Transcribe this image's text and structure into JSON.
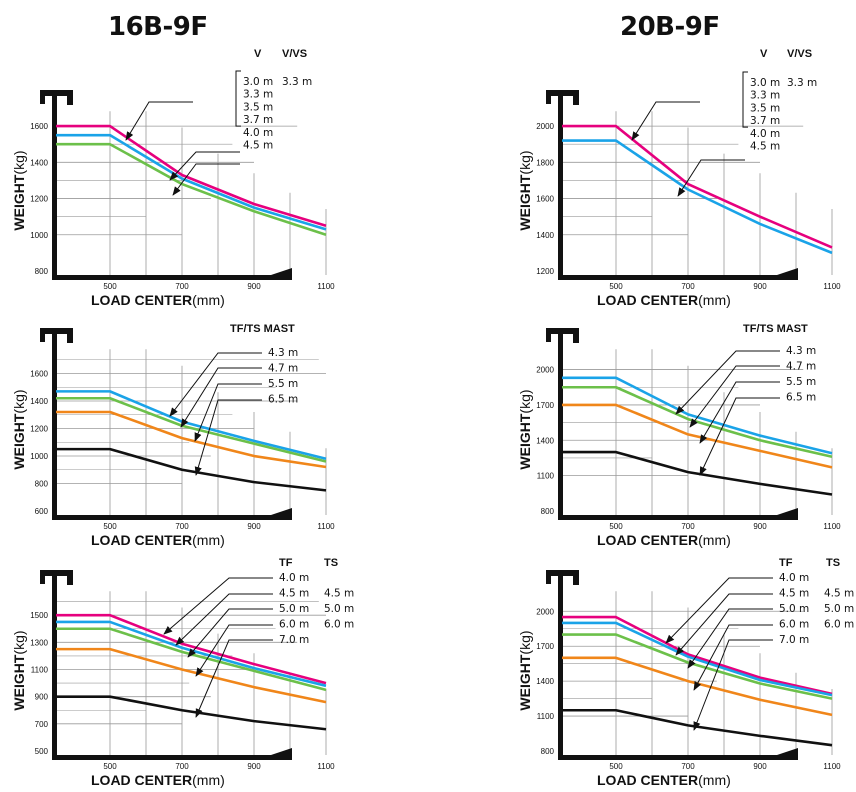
{
  "titles": {
    "left": "16B-9F",
    "right": "20B-9F"
  },
  "axis": {
    "y_bold": "WEIGHT",
    "y_unit": "(kg)",
    "x_bold": "LOAD CENTER",
    "x_unit": "(mm)"
  },
  "colors": {
    "magenta": "#e6007e",
    "cyan": "#1aa3e8",
    "green": "#6cc04a",
    "orange": "#f0861a",
    "black": "#111111",
    "grid": "#9a9a9a"
  },
  "chart_data": [
    {
      "type": "line",
      "model": "16B-9F",
      "mast": "V / V/VS",
      "x": [
        500,
        700,
        900,
        1100
      ],
      "xticks": [
        500,
        700,
        900,
        1100
      ],
      "ylim": [
        800,
        1700
      ],
      "yticks": [
        800,
        1000,
        1200,
        1400,
        1600
      ],
      "headers": [
        "V",
        "V/VS"
      ],
      "labels": [
        {
          "col1": "3.0 m",
          "col2": "3.3 m"
        },
        {
          "col1": "3.3 m"
        },
        {
          "col1": "3.5 m"
        },
        {
          "col1": "3.7 m"
        },
        {
          "col1": "4.0 m"
        },
        {
          "col1": "4.5 m"
        }
      ],
      "series": [
        {
          "color": "#e6007e",
          "values": [
            1600,
            1330,
            1170,
            1050
          ]
        },
        {
          "color": "#1aa3e8",
          "values": [
            1550,
            1310,
            1150,
            1030
          ]
        },
        {
          "color": "#6cc04a",
          "values": [
            1500,
            1280,
            1130,
            1000
          ]
        }
      ]
    },
    {
      "type": "line",
      "model": "20B-9F",
      "mast": "V / V/VS",
      "x": [
        500,
        700,
        900,
        1100
      ],
      "xticks": [
        500,
        700,
        900,
        1100
      ],
      "ylim": [
        1200,
        2100
      ],
      "yticks": [
        1200,
        1400,
        1600,
        1800,
        2000
      ],
      "headers": [
        "V",
        "V/VS"
      ],
      "labels": [
        {
          "col1": "3.0 m",
          "col2": "3.3 m"
        },
        {
          "col1": "3.3 m"
        },
        {
          "col1": "3.5 m"
        },
        {
          "col1": "3.7 m"
        },
        {
          "col1": "4.0 m"
        },
        {
          "col1": "4.5 m"
        }
      ],
      "series": [
        {
          "color": "#e6007e",
          "values": [
            2000,
            1680,
            1500,
            1330
          ]
        },
        {
          "color": "#1aa3e8",
          "values": [
            1920,
            1650,
            1460,
            1300
          ]
        }
      ]
    },
    {
      "type": "line",
      "model": "16B-9F",
      "mast": "TF/TS MAST",
      "x": [
        500,
        700,
        900,
        1100
      ],
      "xticks": [
        500,
        700,
        900,
        1100
      ],
      "ylim": [
        600,
        1800
      ],
      "yticks": [
        600,
        800,
        1000,
        1200,
        1400,
        1600
      ],
      "headers": [
        "TF/TS  MAST"
      ],
      "labels": [
        {
          "col1": "4.3 m"
        },
        {
          "col1": "4.7 m"
        },
        {
          "col1": "5.5 m"
        },
        {
          "col1": "6.5 m"
        }
      ],
      "series": [
        {
          "color": "#1aa3e8",
          "values": [
            1470,
            1250,
            1110,
            980
          ]
        },
        {
          "color": "#6cc04a",
          "values": [
            1420,
            1220,
            1090,
            960
          ]
        },
        {
          "color": "#f0861a",
          "values": [
            1320,
            1130,
            1000,
            920
          ]
        },
        {
          "color": "#111111",
          "values": [
            1050,
            900,
            810,
            750
          ]
        }
      ]
    },
    {
      "type": "line",
      "model": "20B-9F",
      "mast": "TF/TS MAST",
      "x": [
        500,
        700,
        900,
        1100
      ],
      "xticks": [
        500,
        700,
        900,
        1100
      ],
      "ylim": [
        800,
        2200
      ],
      "yticks": [
        800,
        1100,
        1400,
        1700,
        2000
      ],
      "headers": [
        "TF/TS  MAST"
      ],
      "labels": [
        {
          "col1": "4.3 m"
        },
        {
          "col1": "4.7 m"
        },
        {
          "col1": "5.5 m"
        },
        {
          "col1": "6.5 m"
        }
      ],
      "series": [
        {
          "color": "#1aa3e8",
          "values": [
            1930,
            1620,
            1440,
            1290
          ]
        },
        {
          "color": "#6cc04a",
          "values": [
            1850,
            1580,
            1400,
            1260
          ]
        },
        {
          "color": "#f0861a",
          "values": [
            1700,
            1450,
            1310,
            1170
          ]
        },
        {
          "color": "#111111",
          "values": [
            1300,
            1130,
            1030,
            940
          ]
        }
      ]
    },
    {
      "type": "line",
      "model": "16B-9F",
      "mast": "TF / TS",
      "x": [
        500,
        700,
        900,
        1100
      ],
      "xticks": [
        500,
        700,
        900,
        1100
      ],
      "ylim": [
        500,
        1700
      ],
      "yticks": [
        500,
        700,
        900,
        1100,
        1300,
        1500
      ],
      "headers": [
        "TF",
        "TS"
      ],
      "labels": [
        {
          "col1": "4.0 m"
        },
        {
          "col1": "4.5 m",
          "col2": "4.5 m"
        },
        {
          "col1": "5.0 m",
          "col2": "5.0 m"
        },
        {
          "col1": "6.0 m",
          "col2": "6.0 m"
        },
        {
          "col1": "7.0 m"
        }
      ],
      "series": [
        {
          "color": "#e6007e",
          "values": [
            1500,
            1290,
            1140,
            1000
          ]
        },
        {
          "color": "#1aa3e8",
          "values": [
            1450,
            1260,
            1110,
            980
          ]
        },
        {
          "color": "#6cc04a",
          "values": [
            1400,
            1230,
            1090,
            950
          ]
        },
        {
          "color": "#f0861a",
          "values": [
            1250,
            1100,
            970,
            860
          ]
        },
        {
          "color": "#111111",
          "values": [
            900,
            800,
            720,
            660
          ]
        }
      ]
    },
    {
      "type": "line",
      "model": "20B-9F",
      "mast": "TF / TS",
      "x": [
        500,
        700,
        900,
        1100
      ],
      "xticks": [
        500,
        700,
        900,
        1100
      ],
      "ylim": [
        800,
        2200
      ],
      "yticks": [
        800,
        1100,
        1400,
        1700,
        2000
      ],
      "headers": [
        "TF",
        "TS"
      ],
      "labels": [
        {
          "col1": "4.0 m"
        },
        {
          "col1": "4.5 m",
          "col2": "4.5 m"
        },
        {
          "col1": "5.0 m",
          "col2": "5.0 m"
        },
        {
          "col1": "6.0 m",
          "col2": "6.0 m"
        },
        {
          "col1": "7.0 m"
        }
      ],
      "series": [
        {
          "color": "#e6007e",
          "values": [
            1950,
            1630,
            1430,
            1290
          ]
        },
        {
          "color": "#1aa3e8",
          "values": [
            1900,
            1610,
            1410,
            1280
          ]
        },
        {
          "color": "#6cc04a",
          "values": [
            1800,
            1560,
            1380,
            1250
          ]
        },
        {
          "color": "#f0861a",
          "values": [
            1600,
            1400,
            1240,
            1110
          ]
        },
        {
          "color": "#111111",
          "values": [
            1150,
            1020,
            930,
            850
          ]
        }
      ]
    }
  ]
}
